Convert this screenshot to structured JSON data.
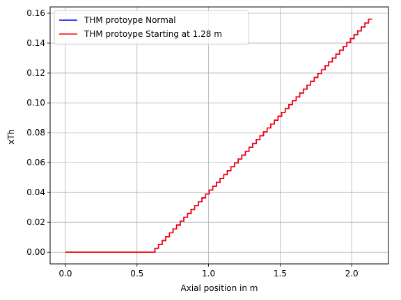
{
  "chart_data": {
    "type": "line",
    "xlabel": "Axial position in m",
    "ylabel": "xTh",
    "xlim": [
      -0.107,
      2.257
    ],
    "ylim": [
      -0.0078,
      0.1642
    ],
    "grid": true,
    "legend_placement": "top-left",
    "x_ticks": [
      0.0,
      0.5,
      1.0,
      1.5,
      2.0
    ],
    "x_tick_labels": [
      "0.0",
      "0.5",
      "1.0",
      "1.5",
      "2.0"
    ],
    "y_ticks": [
      0.0,
      0.02,
      0.04,
      0.06,
      0.08,
      0.1,
      0.12,
      0.14,
      0.16
    ],
    "y_tick_labels": [
      "0.00",
      "0.02",
      "0.04",
      "0.06",
      "0.08",
      "0.10",
      "0.12",
      "0.14",
      "0.16"
    ],
    "series": [
      {
        "name": "THM protoype Normal",
        "color": "#0000ff",
        "step": {
          "x_start": 0.0,
          "x_flat_end": 0.625,
          "x_end": 2.15,
          "step_width": 0.0253,
          "y_step": 0.0026,
          "steps": 60
        }
      },
      {
        "name": "THM protoype Starting at 1.28 m",
        "color": "#ff0000",
        "step": {
          "x_start": 0.0,
          "x_flat_end": 0.625,
          "x_end": 2.15,
          "step_width": 0.0253,
          "y_step": 0.0026,
          "steps": 60
        }
      }
    ]
  }
}
